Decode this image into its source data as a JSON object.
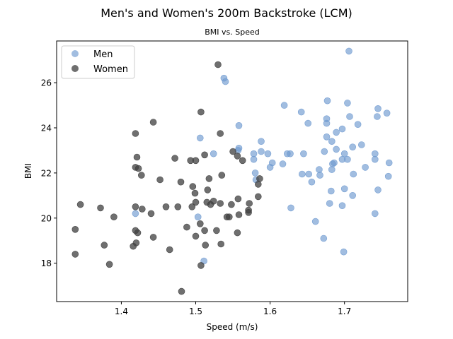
{
  "chart_data": {
    "type": "scatter",
    "title": "Men's and Women's 200m Backstroke (LCM)",
    "subtitle": "BMI vs. Speed",
    "xlabel": "Speed (m/s)",
    "ylabel": "BMI",
    "xlim": [
      1.313,
      1.785
    ],
    "ylim": [
      16.3,
      27.85
    ],
    "xticks": [
      1.4,
      1.5,
      1.6,
      1.7
    ],
    "xtick_labels": [
      "1.4",
      "1.5",
      "1.6",
      "1.7"
    ],
    "yticks": [
      18,
      20,
      22,
      24,
      26
    ],
    "ytick_labels": [
      "18",
      "20",
      "22",
      "24",
      "26"
    ],
    "grid": false,
    "legend_position": "upper-left",
    "series": [
      {
        "name": "Men",
        "color": "#6f9ad0",
        "points": [
          [
            1.706,
            27.4
          ],
          [
            1.538,
            26.2
          ],
          [
            1.54,
            26.05
          ],
          [
            1.677,
            25.2
          ],
          [
            1.704,
            25.1
          ],
          [
            1.619,
            25.0
          ],
          [
            1.745,
            24.85
          ],
          [
            1.757,
            24.65
          ],
          [
            1.642,
            24.7
          ],
          [
            1.744,
            24.5
          ],
          [
            1.707,
            24.5
          ],
          [
            1.676,
            24.4
          ],
          [
            1.676,
            24.2
          ],
          [
            1.718,
            24.15
          ],
          [
            1.651,
            24.2
          ],
          [
            1.558,
            24.1
          ],
          [
            1.697,
            23.95
          ],
          [
            1.689,
            23.8
          ],
          [
            1.676,
            23.6
          ],
          [
            1.506,
            23.55
          ],
          [
            1.683,
            23.4
          ],
          [
            1.588,
            23.4
          ],
          [
            1.723,
            23.25
          ],
          [
            1.711,
            23.15
          ],
          [
            1.558,
            23.1
          ],
          [
            1.557,
            23.0
          ],
          [
            1.588,
            22.95
          ],
          [
            1.689,
            23.05
          ],
          [
            1.673,
            22.95
          ],
          [
            1.597,
            22.85
          ],
          [
            1.741,
            22.85
          ],
          [
            1.627,
            22.85
          ],
          [
            1.645,
            22.85
          ],
          [
            1.623,
            22.85
          ],
          [
            1.578,
            22.85
          ],
          [
            1.578,
            22.6
          ],
          [
            1.7,
            22.85
          ],
          [
            1.524,
            22.85
          ],
          [
            1.697,
            22.6
          ],
          [
            1.741,
            22.6
          ],
          [
            1.704,
            22.6
          ],
          [
            1.603,
            22.45
          ],
          [
            1.76,
            22.45
          ],
          [
            1.686,
            22.45
          ],
          [
            1.684,
            22.4
          ],
          [
            1.617,
            22.4
          ],
          [
            1.6,
            22.25
          ],
          [
            1.728,
            22.25
          ],
          [
            1.666,
            22.15
          ],
          [
            1.683,
            22.15
          ],
          [
            1.58,
            22.0
          ],
          [
            1.643,
            21.95
          ],
          [
            1.652,
            21.95
          ],
          [
            1.712,
            21.95
          ],
          [
            1.667,
            21.9
          ],
          [
            1.759,
            21.85
          ],
          [
            1.581,
            21.7
          ],
          [
            1.656,
            21.6
          ],
          [
            1.7,
            21.3
          ],
          [
            1.745,
            21.25
          ],
          [
            1.682,
            21.2
          ],
          [
            1.711,
            21.0
          ],
          [
            1.68,
            20.65
          ],
          [
            1.697,
            20.55
          ],
          [
            1.628,
            20.45
          ],
          [
            1.419,
            20.2
          ],
          [
            1.741,
            20.2
          ],
          [
            1.503,
            20.05
          ],
          [
            1.661,
            19.85
          ],
          [
            1.672,
            19.1
          ],
          [
            1.511,
            18.1
          ],
          [
            1.699,
            18.5
          ]
        ]
      },
      {
        "name": "Women",
        "color": "#3f3f3f",
        "points": [
          [
            1.53,
            26.8
          ],
          [
            1.507,
            24.7
          ],
          [
            1.443,
            24.25
          ],
          [
            1.419,
            23.75
          ],
          [
            1.533,
            23.75
          ],
          [
            1.55,
            22.95
          ],
          [
            1.512,
            22.8
          ],
          [
            1.421,
            22.7
          ],
          [
            1.472,
            22.65
          ],
          [
            1.493,
            22.55
          ],
          [
            1.5,
            22.55
          ],
          [
            1.563,
            22.55
          ],
          [
            1.556,
            22.75
          ],
          [
            1.419,
            22.25
          ],
          [
            1.423,
            22.2
          ],
          [
            1.427,
            21.9
          ],
          [
            1.535,
            21.9
          ],
          [
            1.518,
            21.75
          ],
          [
            1.452,
            21.7
          ],
          [
            1.48,
            21.6
          ],
          [
            1.586,
            21.75
          ],
          [
            1.584,
            21.5
          ],
          [
            1.496,
            21.4
          ],
          [
            1.516,
            21.25
          ],
          [
            1.499,
            21.1
          ],
          [
            1.557,
            20.85
          ],
          [
            1.584,
            20.95
          ],
          [
            1.524,
            20.75
          ],
          [
            1.533,
            20.65
          ],
          [
            1.52,
            20.6
          ],
          [
            1.515,
            20.7
          ],
          [
            1.5,
            20.7
          ],
          [
            1.548,
            20.6
          ],
          [
            1.495,
            20.5
          ],
          [
            1.476,
            20.5
          ],
          [
            1.46,
            20.5
          ],
          [
            1.572,
            20.65
          ],
          [
            1.571,
            20.25
          ],
          [
            1.571,
            20.35
          ],
          [
            1.558,
            20.15
          ],
          [
            1.419,
            20.5
          ],
          [
            1.428,
            20.4
          ],
          [
            1.44,
            20.2
          ],
          [
            1.345,
            20.6
          ],
          [
            1.372,
            20.45
          ],
          [
            1.39,
            20.05
          ],
          [
            1.545,
            20.05
          ],
          [
            1.542,
            20.05
          ],
          [
            1.506,
            19.75
          ],
          [
            1.488,
            19.6
          ],
          [
            1.512,
            19.45
          ],
          [
            1.528,
            19.45
          ],
          [
            1.556,
            19.35
          ],
          [
            1.419,
            19.45
          ],
          [
            1.422,
            19.35
          ],
          [
            1.443,
            19.15
          ],
          [
            1.5,
            19.2
          ],
          [
            1.338,
            19.5
          ],
          [
            1.42,
            18.9
          ],
          [
            1.416,
            18.75
          ],
          [
            1.377,
            18.8
          ],
          [
            1.465,
            18.6
          ],
          [
            1.513,
            18.8
          ],
          [
            1.534,
            18.85
          ],
          [
            1.338,
            18.4
          ],
          [
            1.384,
            17.95
          ],
          [
            1.507,
            17.9
          ],
          [
            1.481,
            16.75
          ]
        ]
      }
    ]
  }
}
